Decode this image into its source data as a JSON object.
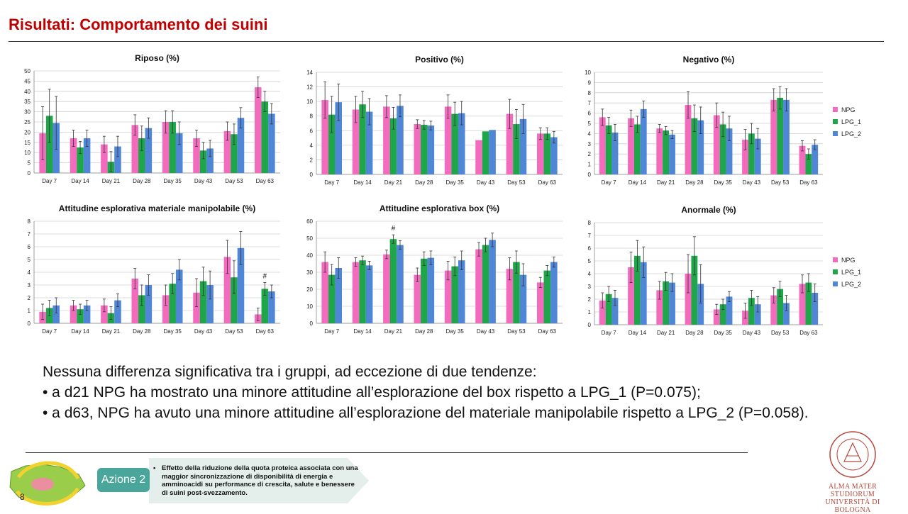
{
  "slide": {
    "title": "Risultati: Comportamento dei suini",
    "page_number": "8"
  },
  "colors": {
    "NPG": "#f26bbd",
    "LPG_1": "#1fa54a",
    "LPG_2": "#4f86d6",
    "title": "#c00000",
    "accent": "#4aa59a"
  },
  "chart_data": [
    {
      "type": "bar",
      "title": "Riposo (%)",
      "categories": [
        "Day 7",
        "Day 14",
        "Day 21",
        "Day 28",
        "Day 35",
        "Day 43",
        "Day 53",
        "Day 63"
      ],
      "ylim": [
        0,
        50
      ],
      "yticks": [
        0,
        5,
        10,
        15,
        20,
        25,
        30,
        35,
        40,
        45,
        50
      ],
      "series": [
        {
          "name": "NPG",
          "values": [
            19.5,
            17,
            14,
            23.5,
            25,
            17,
            20.5,
            42
          ],
          "errors": [
            13,
            4,
            4,
            5,
            5.5,
            4,
            4.5,
            5
          ]
        },
        {
          "name": "LPG_1",
          "values": [
            28,
            12.5,
            5.5,
            17,
            25,
            11,
            19,
            35
          ],
          "errors": [
            13,
            3,
            5,
            6,
            5.5,
            4,
            5,
            5
          ]
        },
        {
          "name": "LPG_2",
          "values": [
            24.5,
            17,
            13,
            22,
            19.5,
            12,
            27,
            29
          ],
          "errors": [
            13,
            4,
            5,
            5,
            5.5,
            4,
            5,
            5
          ]
        }
      ],
      "annotations": []
    },
    {
      "type": "bar",
      "title": "Positivo (%)",
      "categories": [
        "Day 7",
        "Day 14",
        "Day 21",
        "Day 28",
        "Day 35",
        "Day 43",
        "Day 53",
        "Day 63"
      ],
      "ylim": [
        0,
        14
      ],
      "yticks": [
        0,
        2,
        4,
        6,
        8,
        10,
        12,
        14
      ],
      "series": [
        {
          "name": "NPG",
          "values": [
            10.2,
            8.9,
            9.3,
            6.9,
            9.3,
            4.7,
            8.3,
            5.6
          ],
          "errors": [
            2.5,
            1.8,
            1.5,
            0.6,
            1.6,
            0,
            2.0,
            0.8
          ]
        },
        {
          "name": "LPG_1",
          "values": [
            8.2,
            9.6,
            7.7,
            6.8,
            8.3,
            5.9,
            6.9,
            5.6
          ],
          "errors": [
            2.5,
            1.8,
            1.5,
            0.6,
            1.6,
            0,
            2.0,
            0.8
          ]
        },
        {
          "name": "LPG_2",
          "values": [
            9.9,
            8.6,
            9.4,
            6.7,
            8.4,
            6.1,
            7.6,
            5.1
          ],
          "errors": [
            2.5,
            1.8,
            1.5,
            0.6,
            1.6,
            0,
            2.0,
            0.8
          ]
        }
      ],
      "annotations": []
    },
    {
      "type": "bar",
      "title": "Negativo (%)",
      "categories": [
        "Day 7",
        "Day 14",
        "Day 21",
        "Day 28",
        "Day 35",
        "Day 43",
        "Day 53",
        "Day 63"
      ],
      "ylim": [
        0,
        10
      ],
      "yticks": [
        0,
        1,
        2,
        3,
        4,
        5,
        6,
        7,
        8,
        9,
        10
      ],
      "legend": [
        "NPG",
        "LPG_1",
        "LPG_2"
      ],
      "series": [
        {
          "name": "NPG",
          "values": [
            5.6,
            5.5,
            4.5,
            6.8,
            5.8,
            3.4,
            7.3,
            2.8
          ],
          "errors": [
            0.8,
            0.8,
            0.4,
            1.3,
            1.2,
            1.0,
            1.1,
            0.5
          ]
        },
        {
          "name": "LPG_1",
          "values": [
            4.8,
            4.9,
            4.3,
            5.5,
            4.9,
            4.0,
            7.5,
            2.0
          ],
          "errors": [
            0.8,
            0.8,
            0.4,
            1.3,
            1.2,
            1.0,
            1.1,
            0.5
          ]
        },
        {
          "name": "LPG_2",
          "values": [
            4.1,
            6.4,
            3.9,
            5.3,
            4.5,
            3.5,
            7.3,
            2.9
          ],
          "errors": [
            0.8,
            0.8,
            0.4,
            1.3,
            1.2,
            1.0,
            1.1,
            0.5
          ]
        }
      ],
      "annotations": []
    },
    {
      "type": "bar",
      "title": "Attitudine esplorativa materiale manipolabile (%)",
      "categories": [
        "Day 7",
        "Day 14",
        "Day 21",
        "Day 28",
        "Day 35",
        "Day 43",
        "Day 53",
        "Day 63"
      ],
      "ylim": [
        0,
        8
      ],
      "yticks": [
        0,
        1,
        2,
        3,
        4,
        5,
        6,
        7,
        8
      ],
      "series": [
        {
          "name": "NPG",
          "values": [
            0.9,
            1.4,
            1.4,
            3.5,
            2.2,
            2.4,
            5.2,
            0.7
          ],
          "errors": [
            0.6,
            0.4,
            0.5,
            0.8,
            0.8,
            1.1,
            1.3,
            0.5
          ]
        },
        {
          "name": "LPG_1",
          "values": [
            1.2,
            1.1,
            0.8,
            2.2,
            3.1,
            3.3,
            3.6,
            2.7
          ],
          "errors": [
            0.6,
            0.4,
            0.5,
            0.8,
            0.8,
            1.1,
            1.3,
            0.5
          ]
        },
        {
          "name": "LPG_2",
          "values": [
            1.4,
            1.4,
            1.8,
            3.0,
            4.2,
            3.0,
            5.9,
            2.5
          ],
          "errors": [
            0.6,
            0.4,
            0.5,
            0.8,
            0.8,
            1.1,
            1.3,
            0.5
          ]
        }
      ],
      "annotations": [
        {
          "category": "Day 63",
          "text": "#"
        }
      ]
    },
    {
      "type": "bar",
      "title": "Attitudine esplorativa box (%)",
      "categories": [
        "Day 7",
        "Day 14",
        "Day 21",
        "Day 28",
        "Day 35",
        "Day 43",
        "Day 53",
        "Day 63"
      ],
      "ylim": [
        0,
        60
      ],
      "yticks": [
        0,
        10,
        20,
        30,
        40,
        50,
        60
      ],
      "series": [
        {
          "name": "NPG",
          "values": [
            36,
            36,
            40.5,
            28.5,
            31,
            43.5,
            32,
            24
          ],
          "errors": [
            6,
            2.5,
            2.5,
            4,
            5.5,
            4,
            6.5,
            3
          ]
        },
        {
          "name": "LPG_1",
          "values": [
            28.5,
            37,
            49.5,
            38,
            33.5,
            46,
            36,
            31
          ],
          "errors": [
            6,
            2.5,
            2.5,
            4,
            5.5,
            4,
            6.5,
            3
          ]
        },
        {
          "name": "LPG_2",
          "values": [
            32.5,
            34,
            46,
            38.5,
            37,
            49,
            28.5,
            36
          ],
          "errors": [
            6,
            2.5,
            2.5,
            4,
            5.5,
            4,
            6.5,
            3
          ]
        }
      ],
      "annotations": [
        {
          "category": "Day 21",
          "text": "#"
        }
      ]
    },
    {
      "type": "bar",
      "title": "Anormale (%)",
      "categories": [
        "Day 7",
        "Day 14",
        "Day 21",
        "Day 28",
        "Day 35",
        "Day 43",
        "Day 53",
        "Day 63"
      ],
      "ylim": [
        0,
        8
      ],
      "yticks": [
        0,
        1,
        2,
        3,
        4,
        5,
        6,
        7,
        8
      ],
      "legend": [
        "NPG",
        "LPG_1",
        "LPG_2"
      ],
      "series": [
        {
          "name": "NPG",
          "values": [
            1.9,
            4.5,
            2.7,
            4.0,
            1.2,
            1.1,
            2.3,
            3.2
          ],
          "errors": [
            0.6,
            1.2,
            0.7,
            1.5,
            0.4,
            0.6,
            0.6,
            0.7
          ]
        },
        {
          "name": "LPG_1",
          "values": [
            2.4,
            5.4,
            3.4,
            5.4,
            1.6,
            2.1,
            2.8,
            3.3
          ],
          "errors": [
            0.6,
            1.2,
            0.7,
            1.5,
            0.4,
            0.6,
            0.6,
            0.7
          ]
        },
        {
          "name": "LPG_2",
          "values": [
            2.1,
            4.9,
            3.3,
            3.2,
            2.2,
            1.6,
            1.7,
            2.5
          ],
          "errors": [
            0.6,
            1.2,
            0.7,
            1.5,
            0.4,
            0.6,
            0.6,
            0.7
          ]
        }
      ],
      "annotations": []
    }
  ],
  "summary": {
    "intro": "Nessuna differenza significativa tra i gruppi, ad eccezione di due tendenze:",
    "bullet_1": "• a d21 NPG ha mostrato una minore attitudine all’esplorazione del box rispetto a LPG_1 (P=0.075);",
    "bullet_2": "• a d63, NPG ha avuto una minore attitudine all’esplorazione del materiale manipolabile rispetto a LPG_2 (P=0.058)."
  },
  "footer": {
    "action_label": "Azione 2",
    "action_bullet": "•",
    "action_text": "Effetto della riduzione della quota proteica associata con una maggior sincronizzazione di disponibilità di energia e amminoacidi su performance di crescita, salute e benessere di suini post-svezzamento.",
    "university_line_1": "ALMA MATER STUDIORUM",
    "university_line_2": "UNIVERSITÀ DI BOLOGNA",
    "seal_text": "ALMA MATER STUDIORUM A.D. 1088"
  }
}
